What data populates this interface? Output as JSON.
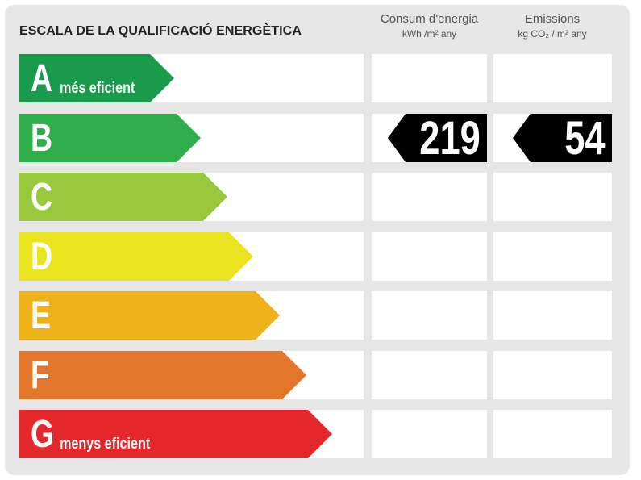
{
  "title": "ESCALA DE LA QUALIFICACIÓ ENERGÈTICA",
  "columns": {
    "consum": {
      "label": "Consum d'energia",
      "unit": "kWh /m² any"
    },
    "emissions": {
      "label": "Emissions",
      "unit": "kg CO₂ / m² any"
    }
  },
  "ratings": [
    {
      "letter": "A",
      "sub": "més eficient",
      "color": "#1a9a4b"
    },
    {
      "letter": "B",
      "sub": "",
      "color": "#2fad4a"
    },
    {
      "letter": "C",
      "sub": "",
      "color": "#98c83c"
    },
    {
      "letter": "D",
      "sub": "",
      "color": "#e9e41e"
    },
    {
      "letter": "E",
      "sub": "",
      "color": "#eeb218"
    },
    {
      "letter": "F",
      "sub": "",
      "color": "#e2762a"
    },
    {
      "letter": "G",
      "sub": "menys eficient",
      "color": "#e3272b"
    }
  ],
  "result": {
    "rating": "B",
    "consum_value": "219",
    "emissions_value": "54"
  }
}
